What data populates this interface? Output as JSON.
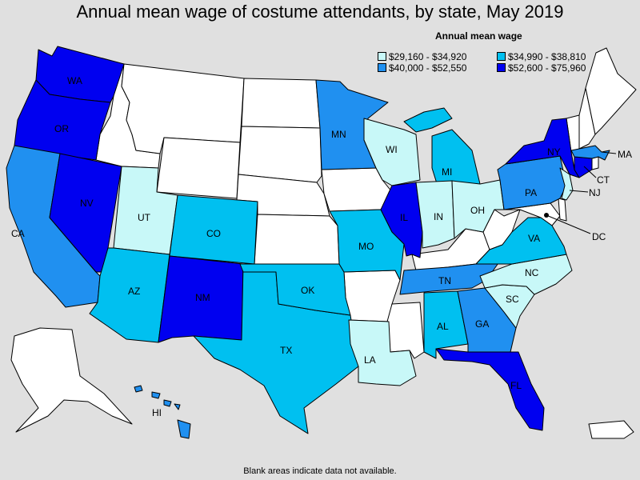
{
  "title": "Annual mean wage of costume attendants, by state, May 2019",
  "legend": {
    "title": "Annual mean wage",
    "items": [
      {
        "label": "$29,160 - $34,920",
        "color": "#c8f8f8"
      },
      {
        "label": "$34,990 - $38,810",
        "color": "#00c0f0"
      },
      {
        "label": "$40,000 - $52,550",
        "color": "#2090f0"
      },
      {
        "label": "$52,600 - $75,960",
        "color": "#0000f0"
      }
    ]
  },
  "colors": {
    "no_data": "#ffffff",
    "background": "#e0e0e0"
  },
  "footnote": "Blank areas indicate data not available.",
  "states": [
    {
      "abbr": "WA",
      "tier": 4
    },
    {
      "abbr": "OR",
      "tier": 4
    },
    {
      "abbr": "CA",
      "tier": 3
    },
    {
      "abbr": "NV",
      "tier": 4
    },
    {
      "abbr": "UT",
      "tier": 1
    },
    {
      "abbr": "AZ",
      "tier": 2
    },
    {
      "abbr": "CO",
      "tier": 2
    },
    {
      "abbr": "NM",
      "tier": 4
    },
    {
      "abbr": "TX",
      "tier": 2
    },
    {
      "abbr": "OK",
      "tier": 2
    },
    {
      "abbr": "MN",
      "tier": 3
    },
    {
      "abbr": "WI",
      "tier": 1
    },
    {
      "abbr": "MO",
      "tier": 2
    },
    {
      "abbr": "LA",
      "tier": 1
    },
    {
      "abbr": "IL",
      "tier": 4
    },
    {
      "abbr": "MI",
      "tier": 2
    },
    {
      "abbr": "IN",
      "tier": 1
    },
    {
      "abbr": "OH",
      "tier": 1
    },
    {
      "abbr": "TN",
      "tier": 3
    },
    {
      "abbr": "AL",
      "tier": 2
    },
    {
      "abbr": "GA",
      "tier": 3
    },
    {
      "abbr": "FL",
      "tier": 4
    },
    {
      "abbr": "SC",
      "tier": 1
    },
    {
      "abbr": "NC",
      "tier": 1
    },
    {
      "abbr": "VA",
      "tier": 2
    },
    {
      "abbr": "PA",
      "tier": 3
    },
    {
      "abbr": "NY",
      "tier": 4
    },
    {
      "abbr": "NJ",
      "tier": 1
    },
    {
      "abbr": "CT",
      "tier": 4
    },
    {
      "abbr": "MA",
      "tier": 3
    },
    {
      "abbr": "DC",
      "tier": 4
    },
    {
      "abbr": "HI",
      "tier": 3
    },
    {
      "abbr": "ID",
      "tier": 0
    },
    {
      "abbr": "MT",
      "tier": 0
    },
    {
      "abbr": "WY",
      "tier": 0
    },
    {
      "abbr": "ND",
      "tier": 0
    },
    {
      "abbr": "SD",
      "tier": 0
    },
    {
      "abbr": "NE",
      "tier": 0
    },
    {
      "abbr": "KS",
      "tier": 0
    },
    {
      "abbr": "IA",
      "tier": 0
    },
    {
      "abbr": "AR",
      "tier": 0
    },
    {
      "abbr": "MS",
      "tier": 0
    },
    {
      "abbr": "KY",
      "tier": 0
    },
    {
      "abbr": "WV",
      "tier": 0
    },
    {
      "abbr": "MD",
      "tier": 0
    },
    {
      "abbr": "DE",
      "tier": 0
    },
    {
      "abbr": "VT",
      "tier": 0
    },
    {
      "abbr": "NH",
      "tier": 0
    },
    {
      "abbr": "ME",
      "tier": 0
    },
    {
      "abbr": "RI",
      "tier": 0
    },
    {
      "abbr": "AK",
      "tier": 0
    },
    {
      "abbr": "PR",
      "tier": 0
    }
  ]
}
